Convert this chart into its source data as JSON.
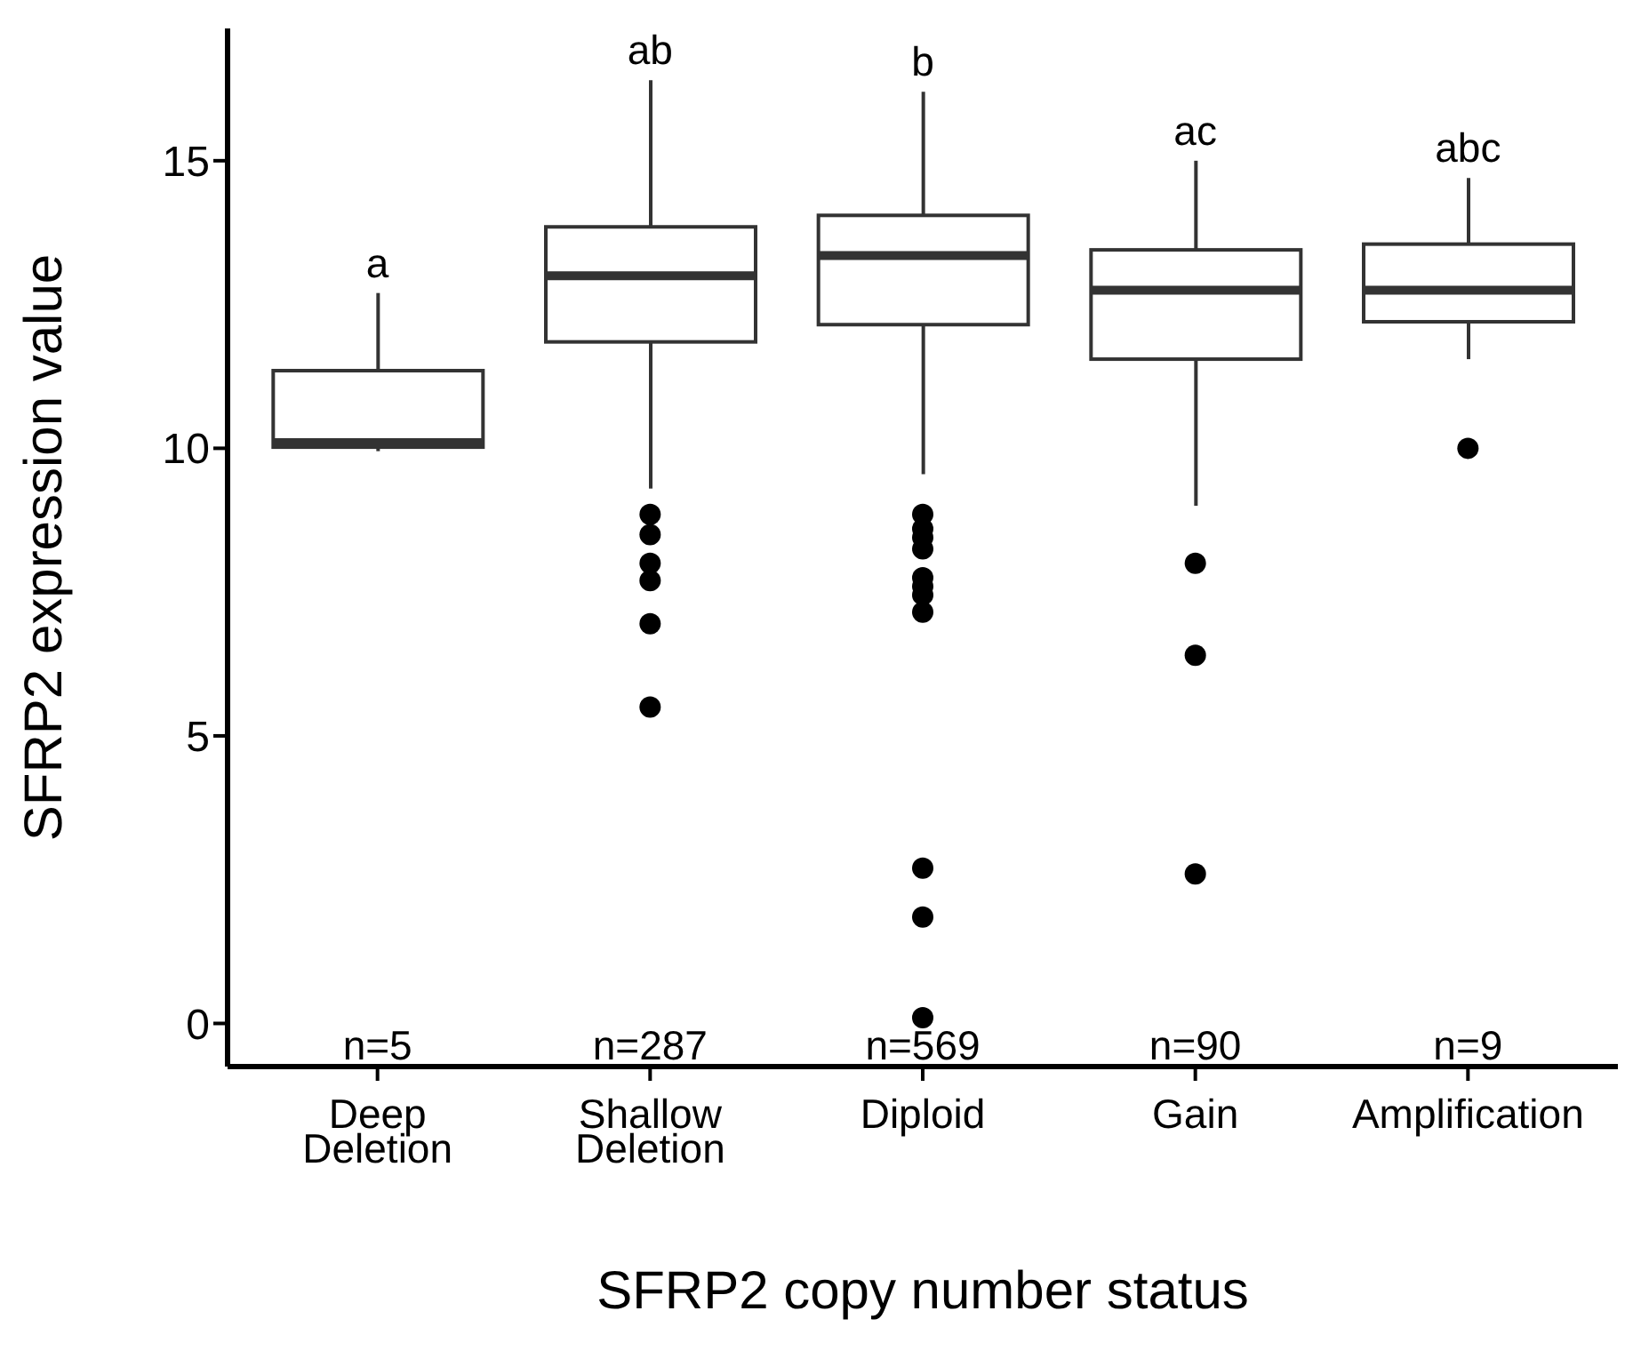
{
  "chart_data": {
    "type": "box",
    "xlabel": "SFRP2 copy number status",
    "ylabel": "SFRP2 expression value",
    "categories": [
      "Deep\nDeletion",
      "Shallow\nDeletion",
      "Diploid",
      "Gain",
      "Amplification"
    ],
    "boxes": [
      {
        "low": 9.95,
        "q1": 10.02,
        "median": 10.1,
        "q3": 11.35,
        "high": 12.7
      },
      {
        "low": 9.3,
        "q1": 11.85,
        "median": 13.0,
        "q3": 13.85,
        "high": 16.4,
        "outliers": [
          8.85,
          8.5,
          8.0,
          7.7,
          6.95,
          5.5
        ]
      },
      {
        "low": 9.55,
        "q1": 12.15,
        "median": 13.35,
        "q3": 14.05,
        "high": 16.2,
        "outliers": [
          8.85,
          8.6,
          8.45,
          8.25,
          7.75,
          7.6,
          7.45,
          7.15,
          2.7,
          1.85,
          0.1
        ]
      },
      {
        "low": 9.0,
        "q1": 11.55,
        "median": 12.75,
        "q3": 13.45,
        "high": 15.0,
        "outliers": [
          8.0,
          6.4,
          2.6
        ]
      },
      {
        "low": 11.55,
        "q1": 12.2,
        "median": 12.75,
        "q3": 13.55,
        "high": 14.7,
        "outliers": [
          10.0
        ]
      }
    ],
    "ylim": [
      -0.75,
      17.3
    ],
    "yticks": [
      0,
      5,
      10,
      15
    ],
    "annotations": [
      "a",
      "ab",
      "b",
      "ac",
      "abc",
      "n=5",
      "n=287",
      "n=569",
      "n=90",
      "n=9"
    ]
  }
}
